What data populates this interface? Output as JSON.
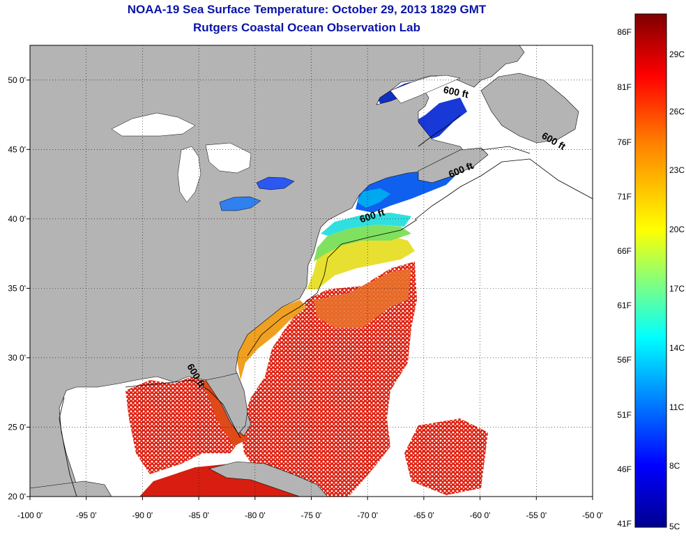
{
  "header": {
    "title": "NOAA-19 Sea Surface Temperature:  October 29, 2013 1829 GMT",
    "subtitle": "Rutgers Coastal Ocean Observation Lab"
  },
  "map": {
    "lon_range": [
      -100,
      -50
    ],
    "lat_range": [
      20,
      52.5
    ],
    "lon_ticks": [
      {
        "value": -100,
        "label": "-100 0'"
      },
      {
        "value": -95,
        "label": "-95 0'"
      },
      {
        "value": -90,
        "label": "-90 0'"
      },
      {
        "value": -85,
        "label": "-85 0'"
      },
      {
        "value": -80,
        "label": "-80 0'"
      },
      {
        "value": -75,
        "label": "-75 0'"
      },
      {
        "value": -70,
        "label": "-70 0'"
      },
      {
        "value": -65,
        "label": "-65 0'"
      },
      {
        "value": -60,
        "label": "-60 0'"
      },
      {
        "value": -55,
        "label": "-55 0'"
      },
      {
        "value": -50,
        "label": "-50 0'"
      }
    ],
    "lat_ticks": [
      {
        "value": 20,
        "label": "20 0'"
      },
      {
        "value": 25,
        "label": "25 0'"
      },
      {
        "value": 30,
        "label": "30 0'"
      },
      {
        "value": 35,
        "label": "35 0'"
      },
      {
        "value": 40,
        "label": "40 0'"
      },
      {
        "value": 45,
        "label": "45 0'"
      },
      {
        "value": 50,
        "label": "50 0'"
      }
    ],
    "contour_labels": [
      {
        "text": "600 ft",
        "lon": -62.2,
        "lat": 48.9
      },
      {
        "text": "600 ft",
        "lon": -53.6,
        "lat": 45.4
      },
      {
        "text": "600 ft",
        "lon": -61.6,
        "lat": 43.3
      },
      {
        "text": "600 ft",
        "lon": -69.5,
        "lat": 40.0
      },
      {
        "text": "600 ft",
        "lon": -85.5,
        "lat": 28.6
      }
    ],
    "land_color": "#b4b4b4",
    "ocean_nodata_color": "#ffffff"
  },
  "colorbar": {
    "fahrenheit_labels": [
      "86F",
      "81F",
      "76F",
      "71F",
      "66F",
      "61F",
      "56F",
      "51F",
      "46F",
      "41F"
    ],
    "celsius_labels": [
      "29C",
      "26C",
      "23C",
      "20C",
      "17C",
      "14C",
      "11C",
      "8C",
      "5C"
    ],
    "range_c": [
      5,
      31
    ],
    "colors": [
      "#00008f",
      "#0000ff",
      "#00ffff",
      "#ffff00",
      "#ff7f00",
      "#ff0000",
      "#7f0000"
    ]
  }
}
